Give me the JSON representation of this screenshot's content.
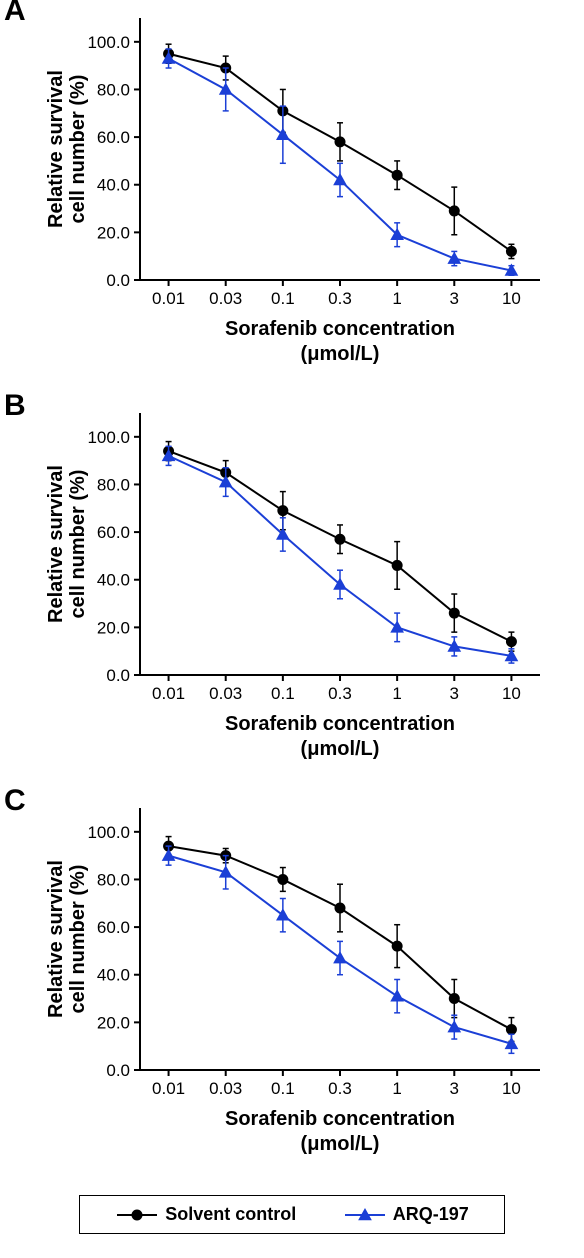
{
  "panels": [
    {
      "label": "A",
      "xlabel_line1": "Sorafenib concentration",
      "xlabel_line2": "(μmol/L)",
      "ylabel_line1": "Relative survival",
      "ylabel_line2": "cell number (%)",
      "x_categories": [
        "0.01",
        "0.03",
        "0.1",
        "0.3",
        "1",
        "3",
        "10"
      ],
      "y_ticks": [
        0.0,
        20.0,
        40.0,
        60.0,
        80.0,
        100.0
      ],
      "y_tick_labels": [
        "0.0",
        "20.0",
        "40.0",
        "60.0",
        "80.0",
        "100.0"
      ],
      "ylim": [
        0,
        110
      ],
      "series": [
        {
          "name": "Solvent control",
          "color": "#000000",
          "marker": "circle",
          "values": [
            95,
            89,
            71,
            58,
            44,
            29,
            12
          ],
          "err": [
            4,
            5,
            9,
            8,
            6,
            10,
            3
          ]
        },
        {
          "name": "ARQ-197",
          "color": "#1b3fd6",
          "marker": "triangle",
          "values": [
            93,
            80,
            61,
            42,
            19,
            9,
            4
          ],
          "err": [
            4,
            9,
            12,
            7,
            5,
            3,
            2
          ]
        }
      ]
    },
    {
      "label": "B",
      "xlabel_line1": "Sorafenib concentration",
      "xlabel_line2": "(μmol/L)",
      "ylabel_line1": "Relative survival",
      "ylabel_line2": "cell number (%)",
      "x_categories": [
        "0.01",
        "0.03",
        "0.1",
        "0.3",
        "1",
        "3",
        "10"
      ],
      "y_ticks": [
        0.0,
        20.0,
        40.0,
        60.0,
        80.0,
        100.0
      ],
      "y_tick_labels": [
        "0.0",
        "20.0",
        "40.0",
        "60.0",
        "80.0",
        "100.0"
      ],
      "ylim": [
        0,
        110
      ],
      "series": [
        {
          "name": "Solvent control",
          "color": "#000000",
          "marker": "circle",
          "values": [
            94,
            85,
            69,
            57,
            46,
            26,
            14
          ],
          "err": [
            4,
            5,
            8,
            6,
            10,
            8,
            4
          ]
        },
        {
          "name": "ARQ-197",
          "color": "#1b3fd6",
          "marker": "triangle",
          "values": [
            92,
            81,
            59,
            38,
            20,
            12,
            8
          ],
          "err": [
            4,
            6,
            7,
            6,
            6,
            4,
            3
          ]
        }
      ]
    },
    {
      "label": "C",
      "xlabel_line1": "Sorafenib concentration",
      "xlabel_line2": "(μmol/L)",
      "ylabel_line1": "Relative survival",
      "ylabel_line2": "cell number (%)",
      "x_categories": [
        "0.01",
        "0.03",
        "0.1",
        "0.3",
        "1",
        "3",
        "10"
      ],
      "y_ticks": [
        0.0,
        20.0,
        40.0,
        60.0,
        80.0,
        100.0
      ],
      "y_tick_labels": [
        "0.0",
        "20.0",
        "40.0",
        "60.0",
        "80.0",
        "100.0"
      ],
      "ylim": [
        0,
        110
      ],
      "series": [
        {
          "name": "Solvent control",
          "color": "#000000",
          "marker": "circle",
          "values": [
            94,
            90,
            80,
            68,
            52,
            30,
            17
          ],
          "err": [
            4,
            3,
            5,
            10,
            9,
            8,
            5
          ]
        },
        {
          "name": "ARQ-197",
          "color": "#1b3fd6",
          "marker": "triangle",
          "values": [
            90,
            83,
            65,
            47,
            31,
            18,
            11
          ],
          "err": [
            4,
            7,
            7,
            7,
            7,
            5,
            4
          ]
        }
      ]
    }
  ],
  "chart_style": {
    "background_color": "#ffffff",
    "axis_color": "#000000",
    "axis_width": 2,
    "line_width": 2,
    "marker_size": 5,
    "error_cap_width": 6,
    "tick_len": 6,
    "title_fontsize": 20,
    "tick_fontsize": 17,
    "label_fontsize": 20
  },
  "legend": {
    "items": [
      {
        "label": "Solvent control",
        "color": "#000000",
        "marker": "circle"
      },
      {
        "label": "ARQ-197",
        "color": "#1b3fd6",
        "marker": "triangle"
      }
    ]
  }
}
